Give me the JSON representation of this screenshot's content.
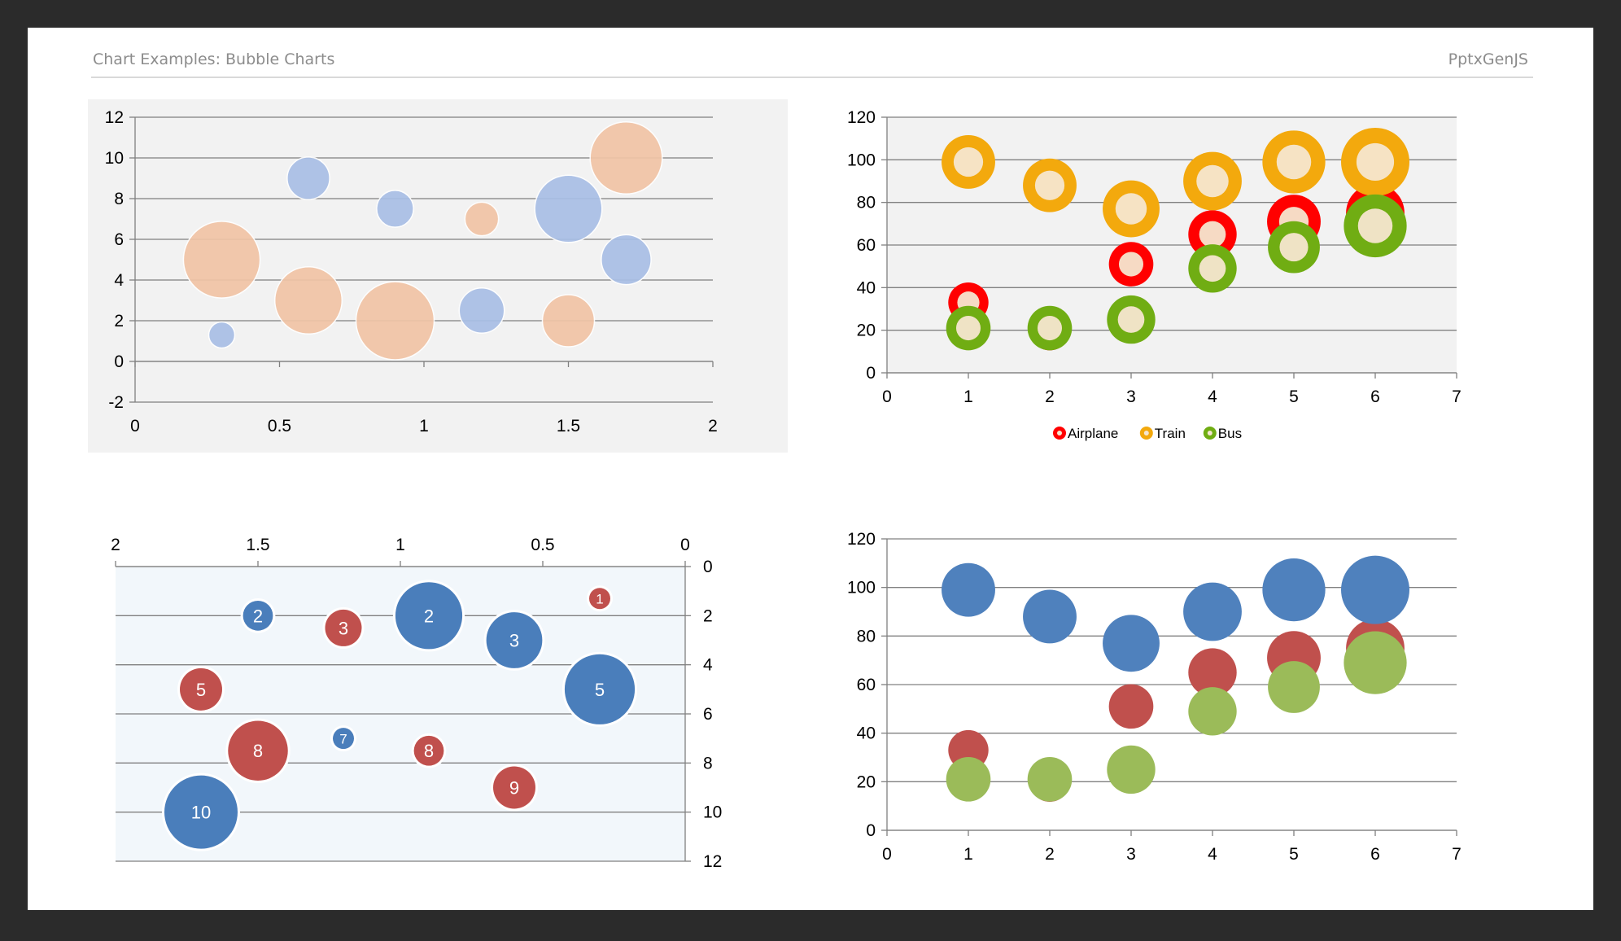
{
  "header": {
    "title": "Chart Examples: Bubble Charts",
    "brand": "PptxGenJS"
  },
  "chart_data": [
    {
      "type": "scatter",
      "subtype": "bubble",
      "xlim": [
        0,
        2
      ],
      "ylim": [
        -2,
        12
      ],
      "x_ticks": [
        0,
        0.5,
        1,
        1.5,
        2
      ],
      "y_ticks": [
        -2,
        0,
        2,
        4,
        6,
        8,
        10,
        12
      ],
      "grid": true,
      "legend": "none",
      "chart_background": "#f2f2f2",
      "series": [
        {
          "color": "#a9bfe6",
          "points": [
            {
              "x": 0.3,
              "y": 1.3,
              "size": 3
            },
            {
              "x": 0.6,
              "y": 9,
              "size": 8
            },
            {
              "x": 0.9,
              "y": 7.5,
              "size": 6
            },
            {
              "x": 1.2,
              "y": 2.5,
              "size": 9
            },
            {
              "x": 1.5,
              "y": 7.5,
              "size": 20
            },
            {
              "x": 1.7,
              "y": 5,
              "size": 11
            }
          ]
        },
        {
          "color": "#f1c4a6",
          "points": [
            {
              "x": 0.3,
              "y": 5,
              "size": 26
            },
            {
              "x": 0.6,
              "y": 3,
              "size": 20
            },
            {
              "x": 0.9,
              "y": 2,
              "size": 27
            },
            {
              "x": 1.2,
              "y": 7,
              "size": 5
            },
            {
              "x": 1.5,
              "y": 2,
              "size": 12
            },
            {
              "x": 1.7,
              "y": 10,
              "size": 23
            }
          ]
        }
      ]
    },
    {
      "type": "scatter",
      "subtype": "bubble",
      "xlim": [
        0,
        7
      ],
      "ylim": [
        0,
        120
      ],
      "x_ticks": [
        0,
        1,
        2,
        3,
        4,
        5,
        6,
        7
      ],
      "y_ticks": [
        0,
        20,
        40,
        60,
        80,
        100,
        120
      ],
      "grid": true,
      "legend": "bottom",
      "plot_background": "#f2f2f2",
      "series": [
        {
          "name": "Airplane",
          "color": "#ff0000",
          "points": [
            {
              "x": 1,
              "y": 33,
              "size": 9
            },
            {
              "x": 2,
              "y": 20,
              "size": 9
            },
            {
              "x": 3,
              "y": 51,
              "size": 11
            },
            {
              "x": 4,
              "y": 65,
              "size": 13
            },
            {
              "x": 5,
              "y": 71,
              "size": 16
            },
            {
              "x": 6,
              "y": 75,
              "size": 19
            }
          ]
        },
        {
          "name": "Train",
          "color": "#f3a90d",
          "points": [
            {
              "x": 1,
              "y": 99,
              "size": 16
            },
            {
              "x": 2,
              "y": 88,
              "size": 16
            },
            {
              "x": 3,
              "y": 77,
              "size": 18
            },
            {
              "x": 4,
              "y": 90,
              "size": 19
            },
            {
              "x": 5,
              "y": 99,
              "size": 22
            },
            {
              "x": 6,
              "y": 99,
              "size": 26
            }
          ]
        },
        {
          "name": "Bus",
          "color": "#70ad13",
          "points": [
            {
              "x": 1,
              "y": 21,
              "size": 11
            },
            {
              "x": 2,
              "y": 21,
              "size": 11
            },
            {
              "x": 3,
              "y": 25,
              "size": 13
            },
            {
              "x": 4,
              "y": 49,
              "size": 13
            },
            {
              "x": 5,
              "y": 59,
              "size": 15
            },
            {
              "x": 6,
              "y": 69,
              "size": 22
            }
          ]
        }
      ]
    },
    {
      "type": "scatter",
      "subtype": "bubble",
      "xlim": [
        0,
        2
      ],
      "ylim": [
        0,
        12
      ],
      "x_reversed": true,
      "y_reversed": true,
      "x_axis_position": "top",
      "y_axis_position": "right",
      "x_ticks": [
        2,
        1.5,
        1,
        0.5,
        0
      ],
      "y_ticks": [
        0,
        2,
        4,
        6,
        8,
        10,
        12
      ],
      "grid": true,
      "legend": "none",
      "plot_background": "#f2f7fb",
      "series": [
        {
          "color": "#4a7ebb",
          "points": [
            {
              "x": 1.5,
              "y": 2,
              "size": 2
            },
            {
              "x": 0.9,
              "y": 2,
              "size": 10
            },
            {
              "x": 0.6,
              "y": 3,
              "size": 7
            },
            {
              "x": 0.3,
              "y": 5,
              "size": 11
            },
            {
              "x": 1.2,
              "y": 7,
              "size": 1
            },
            {
              "x": 1.7,
              "y": 10,
              "size": 12
            }
          ]
        },
        {
          "color": "#c0504d",
          "points": [
            {
              "x": 0.3,
              "y": 1.3,
              "size": 1
            },
            {
              "x": 1.2,
              "y": 2.5,
              "size": 3
            },
            {
              "x": 1.7,
              "y": 5,
              "size": 4
            },
            {
              "x": 1.5,
              "y": 7.5,
              "size": 8
            },
            {
              "x": 0.9,
              "y": 7.5,
              "size": 2
            },
            {
              "x": 0.6,
              "y": 9,
              "size": 4
            }
          ]
        }
      ],
      "data_labels": [
        "2",
        "2",
        "3",
        "5",
        "7",
        "10",
        "1",
        "3",
        "5",
        "8",
        "8",
        "9"
      ]
    },
    {
      "type": "scatter",
      "subtype": "bubble",
      "xlim": [
        0,
        7
      ],
      "ylim": [
        0,
        120
      ],
      "x_ticks": [
        0,
        1,
        2,
        3,
        4,
        5,
        6,
        7
      ],
      "y_ticks": [
        0,
        20,
        40,
        60,
        80,
        100,
        120
      ],
      "grid": true,
      "legend": "none",
      "series": [
        {
          "color": "#c0504d",
          "points": [
            {
              "x": 1,
              "y": 33,
              "size": 9
            },
            {
              "x": 2,
              "y": 20,
              "size": 9
            },
            {
              "x": 3,
              "y": 51,
              "size": 11
            },
            {
              "x": 4,
              "y": 65,
              "size": 13
            },
            {
              "x": 5,
              "y": 71,
              "size": 16
            },
            {
              "x": 6,
              "y": 75,
              "size": 19
            }
          ]
        },
        {
          "color": "#4f81bd",
          "points": [
            {
              "x": 1,
              "y": 99,
              "size": 16
            },
            {
              "x": 2,
              "y": 88,
              "size": 16
            },
            {
              "x": 3,
              "y": 77,
              "size": 18
            },
            {
              "x": 4,
              "y": 90,
              "size": 19
            },
            {
              "x": 5,
              "y": 99,
              "size": 22
            },
            {
              "x": 6,
              "y": 99,
              "size": 26
            }
          ]
        },
        {
          "color": "#9bbb59",
          "points": [
            {
              "x": 1,
              "y": 21,
              "size": 11
            },
            {
              "x": 2,
              "y": 21,
              "size": 11
            },
            {
              "x": 3,
              "y": 25,
              "size": 13
            },
            {
              "x": 4,
              "y": 49,
              "size": 13
            },
            {
              "x": 5,
              "y": 59,
              "size": 15
            },
            {
              "x": 6,
              "y": 69,
              "size": 22
            }
          ]
        }
      ]
    }
  ]
}
